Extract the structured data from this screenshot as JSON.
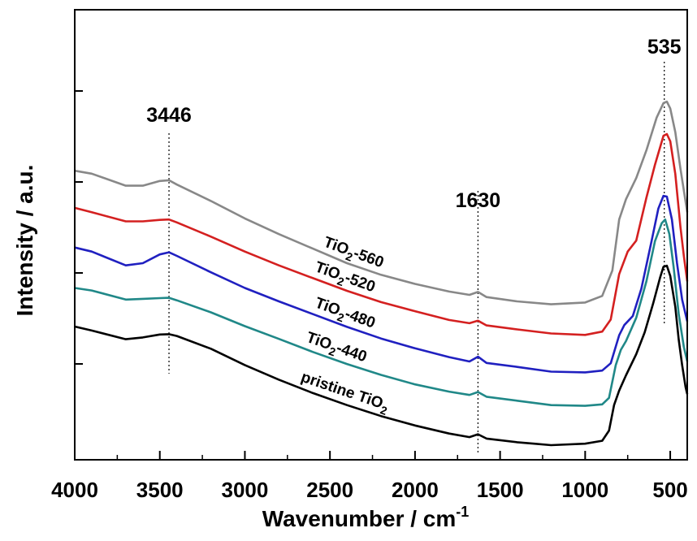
{
  "chart_data": {
    "type": "line",
    "title": "",
    "xlabel": "Wavenumber / cm",
    "xlabel_sup": "-1",
    "ylabel": "Intensity / a.u.",
    "xlim": [
      4000,
      400
    ],
    "x_reversed": true,
    "ylim": [
      0,
      1
    ],
    "y_ticks_unlabeled": true,
    "x_ticks": [
      4000,
      3500,
      3000,
      2500,
      2000,
      1500,
      1000,
      500
    ],
    "grid": false,
    "annotations": [
      {
        "text": "3446",
        "x": 3446
      },
      {
        "text": "1630",
        "x": 1630
      },
      {
        "text": "535",
        "x": 535
      }
    ],
    "series": [
      {
        "label_main": "TiO",
        "label_sub": "2",
        "label_suffix": "-560",
        "color": "#888888",
        "points": [
          [
            4000,
            0.754
          ],
          [
            3900,
            0.746
          ],
          [
            3700,
            0.713
          ],
          [
            3600,
            0.713
          ],
          [
            3500,
            0.726
          ],
          [
            3446,
            0.728
          ],
          [
            3400,
            0.716
          ],
          [
            3200,
            0.671
          ],
          [
            3000,
            0.623
          ],
          [
            2800,
            0.58
          ],
          [
            2600,
            0.54
          ],
          [
            2400,
            0.5
          ],
          [
            2200,
            0.468
          ],
          [
            2000,
            0.443
          ],
          [
            1800,
            0.422
          ],
          [
            1680,
            0.413
          ],
          [
            1630,
            0.421
          ],
          [
            1580,
            0.407
          ],
          [
            1400,
            0.395
          ],
          [
            1200,
            0.387
          ],
          [
            1000,
            0.392
          ],
          [
            900,
            0.41
          ],
          [
            840,
            0.48
          ],
          [
            800,
            0.62
          ],
          [
            760,
            0.676
          ],
          [
            700,
            0.734
          ],
          [
            640,
            0.81
          ],
          [
            580,
            0.9
          ],
          [
            540,
            0.94
          ],
          [
            520,
            0.944
          ],
          [
            500,
            0.925
          ],
          [
            470,
            0.86
          ],
          [
            440,
            0.76
          ],
          [
            420,
            0.7
          ],
          [
            400,
            0.64
          ]
        ]
      },
      {
        "label_main": "TiO",
        "label_sub": "2",
        "label_suffix": "-520",
        "color": "#d42020",
        "points": [
          [
            4000,
            0.652
          ],
          [
            3900,
            0.64
          ],
          [
            3700,
            0.615
          ],
          [
            3600,
            0.615
          ],
          [
            3500,
            0.619
          ],
          [
            3446,
            0.62
          ],
          [
            3400,
            0.612
          ],
          [
            3200,
            0.573
          ],
          [
            3000,
            0.532
          ],
          [
            2800,
            0.494
          ],
          [
            2600,
            0.459
          ],
          [
            2400,
            0.424
          ],
          [
            2200,
            0.393
          ],
          [
            2000,
            0.368
          ],
          [
            1800,
            0.344
          ],
          [
            1680,
            0.335
          ],
          [
            1630,
            0.342
          ],
          [
            1580,
            0.329
          ],
          [
            1400,
            0.318
          ],
          [
            1200,
            0.307
          ],
          [
            1000,
            0.303
          ],
          [
            900,
            0.312
          ],
          [
            850,
            0.345
          ],
          [
            800,
            0.47
          ],
          [
            750,
            0.532
          ],
          [
            700,
            0.562
          ],
          [
            640,
            0.68
          ],
          [
            590,
            0.77
          ],
          [
            540,
            0.85
          ],
          [
            520,
            0.855
          ],
          [
            500,
            0.835
          ],
          [
            470,
            0.745
          ],
          [
            440,
            0.6
          ],
          [
            420,
            0.52
          ],
          [
            400,
            0.45
          ]
        ]
      },
      {
        "label_main": "TiO",
        "label_sub": "2",
        "label_suffix": "-480",
        "color": "#2020c0",
        "points": [
          [
            4000,
            0.543
          ],
          [
            3900,
            0.532
          ],
          [
            3700,
            0.494
          ],
          [
            3600,
            0.5
          ],
          [
            3500,
            0.524
          ],
          [
            3446,
            0.53
          ],
          [
            3400,
            0.52
          ],
          [
            3200,
            0.475
          ],
          [
            3000,
            0.432
          ],
          [
            2800,
            0.395
          ],
          [
            2600,
            0.36
          ],
          [
            2400,
            0.325
          ],
          [
            2200,
            0.293
          ],
          [
            2000,
            0.266
          ],
          [
            1800,
            0.242
          ],
          [
            1680,
            0.23
          ],
          [
            1630,
            0.243
          ],
          [
            1580,
            0.226
          ],
          [
            1400,
            0.215
          ],
          [
            1200,
            0.202
          ],
          [
            1000,
            0.2
          ],
          [
            900,
            0.205
          ],
          [
            850,
            0.225
          ],
          [
            800,
            0.302
          ],
          [
            770,
            0.33
          ],
          [
            720,
            0.355
          ],
          [
            670,
            0.43
          ],
          [
            610,
            0.56
          ],
          [
            570,
            0.65
          ],
          [
            540,
            0.685
          ],
          [
            520,
            0.683
          ],
          [
            490,
            0.62
          ],
          [
            460,
            0.5
          ],
          [
            430,
            0.4
          ],
          [
            410,
            0.36
          ],
          [
            400,
            0.34
          ]
        ]
      },
      {
        "label_main": "TiO",
        "label_sub": "2",
        "label_suffix": "-440",
        "color": "#208888",
        "points": [
          [
            4000,
            0.432
          ],
          [
            3900,
            0.425
          ],
          [
            3700,
            0.4
          ],
          [
            3600,
            0.402
          ],
          [
            3500,
            0.404
          ],
          [
            3446,
            0.405
          ],
          [
            3400,
            0.398
          ],
          [
            3200,
            0.365
          ],
          [
            3000,
            0.327
          ],
          [
            2800,
            0.292
          ],
          [
            2600,
            0.256
          ],
          [
            2400,
            0.223
          ],
          [
            2200,
            0.193
          ],
          [
            2000,
            0.167
          ],
          [
            1800,
            0.147
          ],
          [
            1680,
            0.138
          ],
          [
            1630,
            0.146
          ],
          [
            1580,
            0.133
          ],
          [
            1400,
            0.122
          ],
          [
            1200,
            0.11
          ],
          [
            1000,
            0.108
          ],
          [
            900,
            0.112
          ],
          [
            860,
            0.13
          ],
          [
            820,
            0.22
          ],
          [
            790,
            0.262
          ],
          [
            760,
            0.286
          ],
          [
            700,
            0.35
          ],
          [
            640,
            0.45
          ],
          [
            590,
            0.56
          ],
          [
            550,
            0.61
          ],
          [
            530,
            0.62
          ],
          [
            505,
            0.58
          ],
          [
            480,
            0.49
          ],
          [
            450,
            0.36
          ],
          [
            420,
            0.27
          ],
          [
            400,
            0.23
          ]
        ]
      },
      {
        "label_main": "pristine TiO",
        "label_sub": "2",
        "label_suffix": "",
        "color": "#000000",
        "points": [
          [
            4000,
            0.326
          ],
          [
            3900,
            0.315
          ],
          [
            3700,
            0.291
          ],
          [
            3600,
            0.296
          ],
          [
            3500,
            0.304
          ],
          [
            3446,
            0.305
          ],
          [
            3400,
            0.3
          ],
          [
            3200,
            0.265
          ],
          [
            3000,
            0.22
          ],
          [
            2800,
            0.18
          ],
          [
            2600,
            0.143
          ],
          [
            2400,
            0.11
          ],
          [
            2200,
            0.08
          ],
          [
            2000,
            0.054
          ],
          [
            1800,
            0.032
          ],
          [
            1680,
            0.022
          ],
          [
            1630,
            0.03
          ],
          [
            1580,
            0.018
          ],
          [
            1400,
            0.008
          ],
          [
            1300,
            0.004
          ],
          [
            1200,
            0.0
          ],
          [
            1000,
            0.004
          ],
          [
            900,
            0.012
          ],
          [
            860,
            0.04
          ],
          [
            830,
            0.11
          ],
          [
            800,
            0.15
          ],
          [
            760,
            0.192
          ],
          [
            700,
            0.25
          ],
          [
            650,
            0.31
          ],
          [
            600,
            0.39
          ],
          [
            560,
            0.46
          ],
          [
            540,
            0.49
          ],
          [
            520,
            0.493
          ],
          [
            500,
            0.465
          ],
          [
            470,
            0.38
          ],
          [
            450,
            0.29
          ],
          [
            430,
            0.22
          ],
          [
            410,
            0.16
          ],
          [
            400,
            0.14
          ]
        ]
      }
    ]
  }
}
